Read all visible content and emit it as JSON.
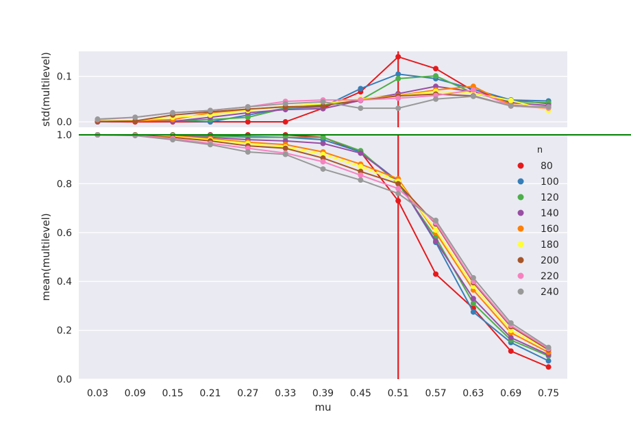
{
  "chart_data": [
    {
      "type": "line",
      "panel": "top",
      "ylabel": "std(multilevel)",
      "ylim": [
        -0.012,
        0.155
      ],
      "yticks": [
        0.0,
        0.1
      ],
      "ytick_labels": [
        "0.0",
        "0.1"
      ],
      "grid": true,
      "vline_x": "0.51",
      "vline_color": "#e41a1c",
      "series": [
        {
          "name": "80",
          "color": "#e41a1c",
          "values": [
            0.0,
            0.0,
            0.0,
            0.0,
            0.0,
            0.0,
            0.03,
            0.066,
            0.143,
            0.117,
            0.068,
            0.048,
            0.04
          ]
        },
        {
          "name": "100",
          "color": "#377eb8",
          "values": [
            0.001,
            0.002,
            0.002,
            0.0,
            0.015,
            0.03,
            0.033,
            0.073,
            0.105,
            0.095,
            0.072,
            0.048,
            0.046
          ]
        },
        {
          "name": "120",
          "color": "#4daf4a",
          "values": [
            0.0,
            0.002,
            0.002,
            0.005,
            0.01,
            0.03,
            0.038,
            0.048,
            0.095,
            0.101,
            0.063,
            0.045,
            0.042
          ]
        },
        {
          "name": "140",
          "color": "#984ea3",
          "values": [
            0.0,
            0.002,
            0.001,
            0.01,
            0.02,
            0.027,
            0.029,
            0.047,
            0.062,
            0.078,
            0.066,
            0.042,
            0.036
          ]
        },
        {
          "name": "160",
          "color": "#ff7f00",
          "values": [
            0.001,
            0.002,
            0.005,
            0.02,
            0.027,
            0.034,
            0.04,
            0.05,
            0.058,
            0.07,
            0.078,
            0.037,
            0.032
          ]
        },
        {
          "name": "180",
          "color": "#ffff33",
          "values": [
            0.002,
            0.003,
            0.01,
            0.015,
            0.025,
            0.034,
            0.04,
            0.05,
            0.057,
            0.067,
            0.063,
            0.047,
            0.025
          ]
        },
        {
          "name": "200",
          "color": "#a65628",
          "values": [
            0.001,
            0.002,
            0.015,
            0.022,
            0.028,
            0.033,
            0.035,
            0.048,
            0.057,
            0.061,
            0.057,
            0.035,
            0.031
          ]
        },
        {
          "name": "220",
          "color": "#f781bf",
          "values": [
            0.005,
            0.01,
            0.02,
            0.025,
            0.033,
            0.045,
            0.048,
            0.048,
            0.052,
            0.058,
            0.07,
            0.035,
            0.03
          ]
        },
        {
          "name": "240",
          "color": "#999999",
          "values": [
            0.006,
            0.01,
            0.02,
            0.025,
            0.033,
            0.04,
            0.044,
            0.03,
            0.03,
            0.05,
            0.056,
            0.035,
            0.033
          ]
        }
      ]
    },
    {
      "type": "line",
      "panel": "bottom",
      "xlabel": "mu",
      "ylabel": "mean(multilevel)",
      "categories": [
        "0.03",
        "0.09",
        "0.15",
        "0.21",
        "0.27",
        "0.33",
        "0.39",
        "0.45",
        "0.51",
        "0.57",
        "0.63",
        "0.69",
        "0.75"
      ],
      "ylim": [
        0.0,
        1.0
      ],
      "yticks": [
        0.0,
        0.2,
        0.4,
        0.6,
        0.8,
        1.0
      ],
      "ytick_labels": [
        "0.0",
        "0.2",
        "0.4",
        "0.6",
        "0.8",
        "1.0"
      ],
      "grid": true,
      "vline_x": "0.51",
      "vline_color": "#e41a1c",
      "hline_y": 1.0,
      "hline_color": "#008000",
      "legend_title": "n",
      "legend_position": "right",
      "series": [
        {
          "name": "80",
          "color": "#e41a1c",
          "values": [
            1.0,
            1.0,
            1.0,
            1.0,
            1.0,
            1.0,
            0.99,
            0.93,
            0.73,
            0.43,
            0.29,
            0.115,
            0.05
          ]
        },
        {
          "name": "100",
          "color": "#377eb8",
          "values": [
            1.0,
            1.0,
            0.999,
            0.998,
            0.993,
            0.99,
            0.98,
            0.93,
            0.81,
            0.56,
            0.275,
            0.15,
            0.075
          ]
        },
        {
          "name": "120",
          "color": "#4daf4a",
          "values": [
            1.0,
            1.0,
            0.999,
            0.995,
            0.99,
            0.99,
            0.99,
            0.935,
            0.8,
            0.58,
            0.31,
            0.16,
            0.095
          ]
        },
        {
          "name": "140",
          "color": "#984ea3",
          "values": [
            1.0,
            0.999,
            0.995,
            0.99,
            0.98,
            0.975,
            0.965,
            0.925,
            0.81,
            0.565,
            0.33,
            0.17,
            0.1
          ]
        },
        {
          "name": "160",
          "color": "#ff7f00",
          "values": [
            1.0,
            0.999,
            0.995,
            0.985,
            0.97,
            0.96,
            0.93,
            0.88,
            0.82,
            0.6,
            0.365,
            0.19,
            0.11
          ]
        },
        {
          "name": "180",
          "color": "#ffff33",
          "values": [
            1.0,
            0.999,
            0.993,
            0.98,
            0.965,
            0.95,
            0.92,
            0.87,
            0.81,
            0.61,
            0.38,
            0.2,
            0.12
          ]
        },
        {
          "name": "200",
          "color": "#a65628",
          "values": [
            1.0,
            0.999,
            0.99,
            0.975,
            0.955,
            0.945,
            0.905,
            0.85,
            0.8,
            0.635,
            0.395,
            0.215,
            0.12
          ]
        },
        {
          "name": "220",
          "color": "#f781bf",
          "values": [
            1.0,
            0.998,
            0.985,
            0.965,
            0.945,
            0.925,
            0.89,
            0.835,
            0.78,
            0.64,
            0.4,
            0.22,
            0.125
          ]
        },
        {
          "name": "240",
          "color": "#999999",
          "values": [
            1.0,
            0.997,
            0.98,
            0.96,
            0.93,
            0.92,
            0.86,
            0.815,
            0.76,
            0.65,
            0.415,
            0.23,
            0.13
          ]
        }
      ]
    }
  ]
}
